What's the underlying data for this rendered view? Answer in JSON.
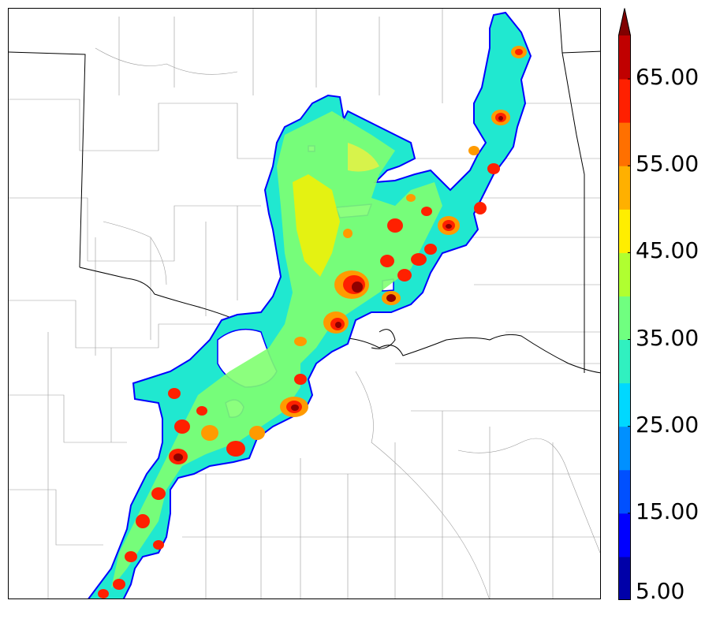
{
  "colorbar": {
    "min": 5,
    "max": 70,
    "step": 5,
    "extend": "max",
    "tick_labels": [
      "5.00",
      "15.00",
      "25.00",
      "35.00",
      "45.00",
      "55.00",
      "65.00"
    ],
    "tick_values": [
      5,
      15,
      25,
      35,
      45,
      55,
      65
    ],
    "colors": [
      "#0000a8",
      "#0000ff",
      "#0050ff",
      "#0090ff",
      "#00d8ff",
      "#30f0c0",
      "#70ff80",
      "#b0ff30",
      "#ffee00",
      "#ffb000",
      "#ff7000",
      "#ff2000",
      "#c00000",
      "#800000"
    ]
  },
  "map": {
    "field_colors": {
      "blue_edge": "#0000ff",
      "cyan": "#20e8d0",
      "green": "#80ff70",
      "yellow": "#f8f000",
      "orange": "#ff9a00",
      "red": "#ff2000",
      "dark_red": "#900000"
    },
    "boundary_color": "#000000",
    "county_color": "#9a9a9a"
  }
}
